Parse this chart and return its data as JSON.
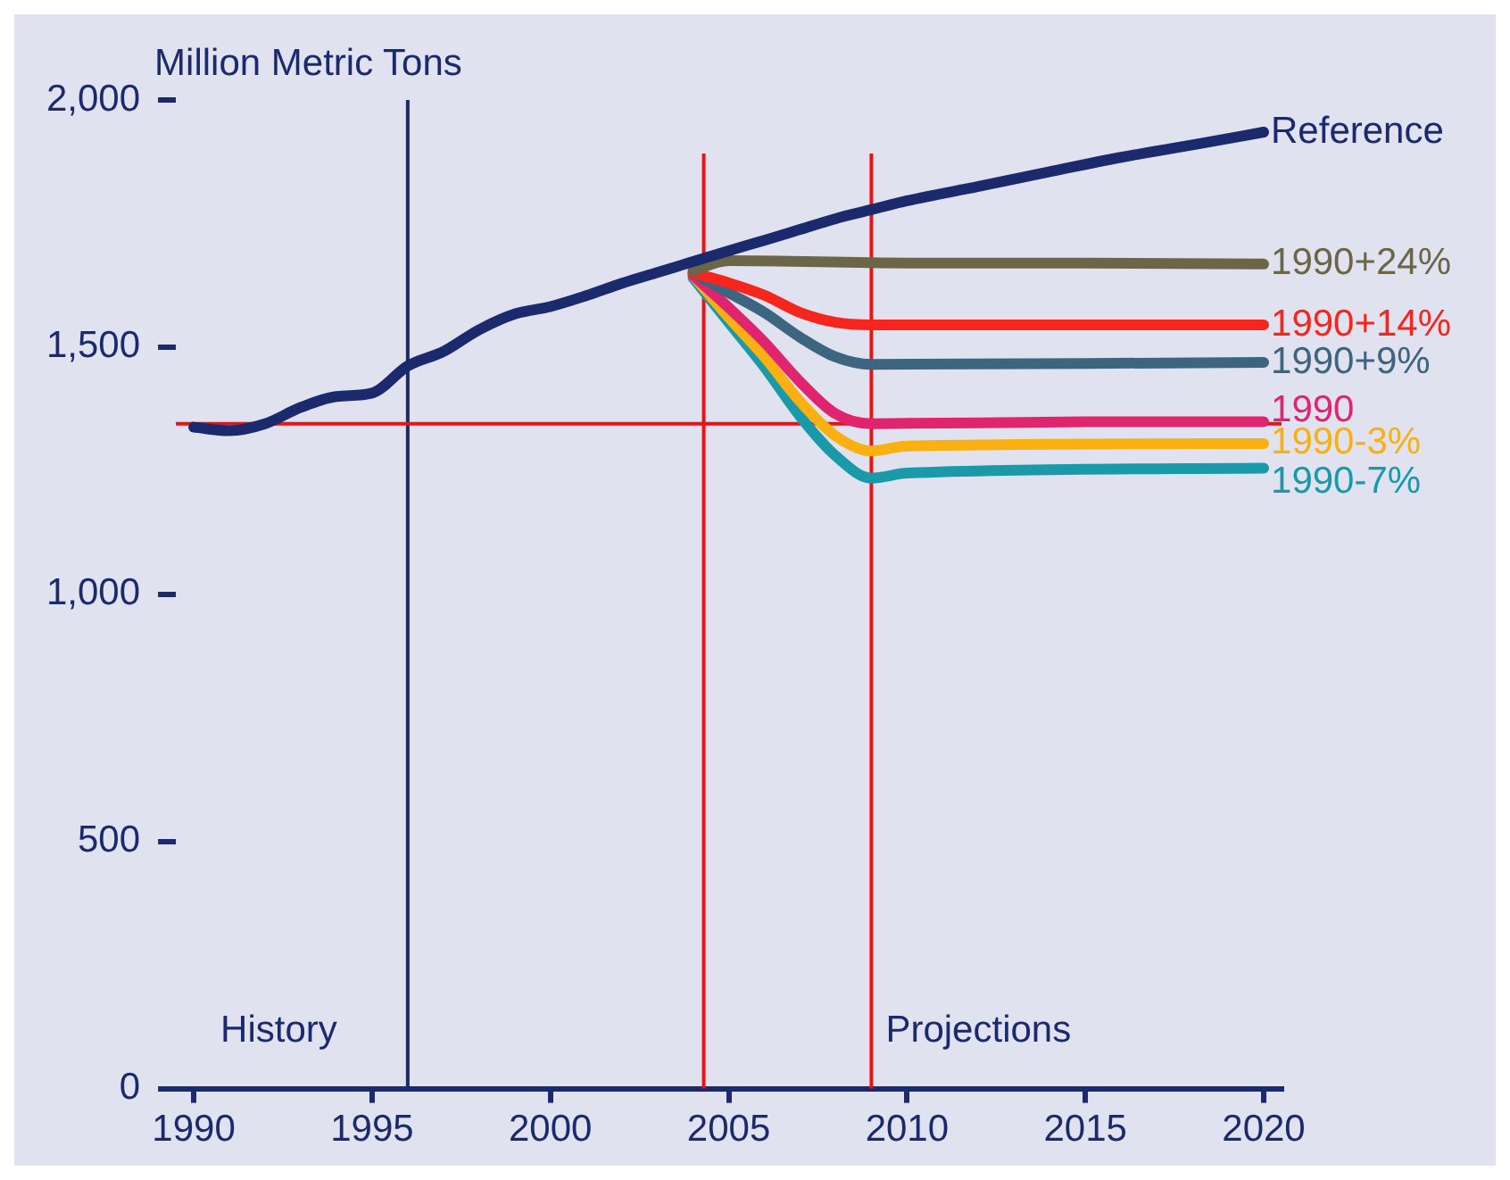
{
  "chart_data": {
    "type": "line",
    "ylabel": "Million Metric Tons",
    "xlim": [
      1989.5,
      2020.5
    ],
    "xticks": [
      1990,
      1995,
      2000,
      2005,
      2010,
      2015,
      2020
    ],
    "ylim": [
      0,
      2000
    ],
    "yticks": [
      0,
      {
        "value": 500,
        "label": "500"
      },
      {
        "value": 1000,
        "label": "1,000"
      },
      {
        "value": 1500,
        "label": "1,500"
      },
      {
        "value": 2000,
        "label": "2,000"
      }
    ],
    "grid": false,
    "legend": false,
    "marker": "none",
    "line_style": "solid",
    "series": [
      {
        "name": "Reference",
        "color": "#1a2a6c",
        "x": [
          1990,
          1991,
          1992,
          1993,
          1994,
          1995,
          1996,
          1997,
          1998,
          1999,
          2000,
          2001,
          2002,
          2003,
          2004,
          2005,
          2006,
          2007,
          2008,
          2009,
          2010,
          2012,
          2014,
          2016,
          2018,
          2020
        ],
        "values": [
          1338,
          1331,
          1345,
          1378,
          1400,
          1407,
          1462,
          1491,
          1535,
          1567,
          1582,
          1604,
          1629,
          1651,
          1673,
          1695,
          1716,
          1738,
          1760,
          1778,
          1796,
          1825,
          1855,
          1884,
          1909,
          1935
        ]
      },
      {
        "name": "1990+24%",
        "color": "#6b6647",
        "x": [
          2004,
          2005,
          2010,
          2015,
          2020
        ],
        "values": [
          1655,
          1675,
          1670,
          1670,
          1668
        ]
      },
      {
        "name": "1990+14%",
        "color": "#f5261e",
        "x": [
          2004,
          2005,
          2006,
          2007,
          2008,
          2009,
          2015,
          2020
        ],
        "values": [
          1650,
          1630,
          1605,
          1570,
          1550,
          1545,
          1545,
          1545
        ]
      },
      {
        "name": "1990+9%",
        "color": "#3d6580",
        "x": [
          2004,
          2005,
          2006,
          2007,
          2008,
          2009,
          2015,
          2020
        ],
        "values": [
          1650,
          1610,
          1570,
          1520,
          1480,
          1465,
          1467,
          1469
        ]
      },
      {
        "name": "1990",
        "color": "#e0246e",
        "x": [
          2004,
          2005,
          2006,
          2007,
          2008,
          2009,
          2015,
          2020
        ],
        "values": [
          1645,
          1580,
          1510,
          1430,
          1365,
          1345,
          1349,
          1349
        ]
      },
      {
        "name": "1990-3%",
        "color": "#f8b012",
        "x": [
          2004,
          2005,
          2006,
          2007,
          2008,
          2009,
          2010,
          2020
        ],
        "values": [
          1645,
          1560,
          1480,
          1390,
          1320,
          1290,
          1300,
          1305
        ]
      },
      {
        "name": "1990-7%",
        "color": "#1a9aa8",
        "x": [
          2004,
          2005,
          2006,
          2007,
          2008,
          2009,
          2010,
          2020
        ],
        "values": [
          1640,
          1550,
          1460,
          1360,
          1280,
          1235,
          1245,
          1255
        ]
      }
    ],
    "ref_lines": [
      {
        "axis": "x",
        "value": 1996,
        "color": "#1a2a6c"
      },
      {
        "axis": "x",
        "value": 2004.3,
        "color": "#ee1111"
      },
      {
        "axis": "x",
        "value": 2009,
        "color": "#ee1111"
      },
      {
        "axis": "y",
        "value": 1345,
        "color": "#ee1111"
      }
    ],
    "annotations": [
      "History",
      "Projections"
    ]
  }
}
